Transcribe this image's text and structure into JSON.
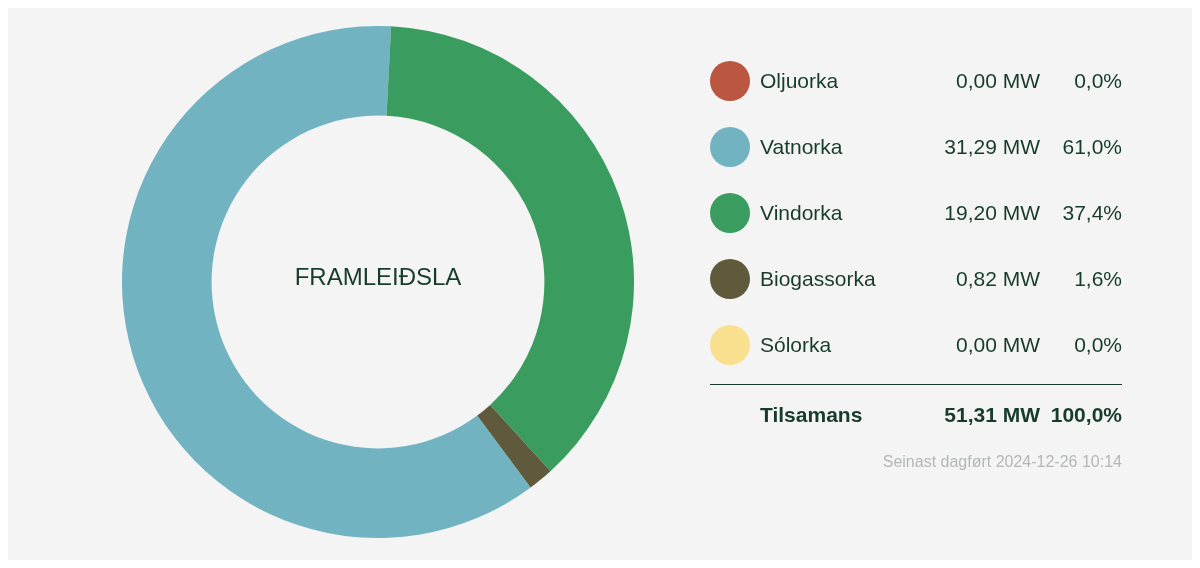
{
  "chart_data": {
    "type": "donut",
    "title": "FRAMLEIÐSLA",
    "categories": [
      "Oljuorka",
      "Vatnorka",
      "Vindorka",
      "Biogassorka",
      "Sólorka"
    ],
    "values": [
      0.0,
      31.29,
      19.2,
      0.82,
      0.0
    ],
    "colors": [
      "#bb5640",
      "#72b3c2",
      "#3a9d5f",
      "#5f5a3c",
      "#f9e08e"
    ],
    "value_labels": [
      "0,00 MW",
      "31,29 MW",
      "19,20 MW",
      "0,82 MW",
      "0,00 MW"
    ],
    "legend": "right",
    "annotations": [
      "0,0%",
      "61,0%",
      "37,4%",
      "1,6%",
      "0,0%",
      "Tilsamans",
      "51,31 MW",
      "100,0%",
      "Seinast dagført 2024-12-26 10:14"
    ]
  }
}
